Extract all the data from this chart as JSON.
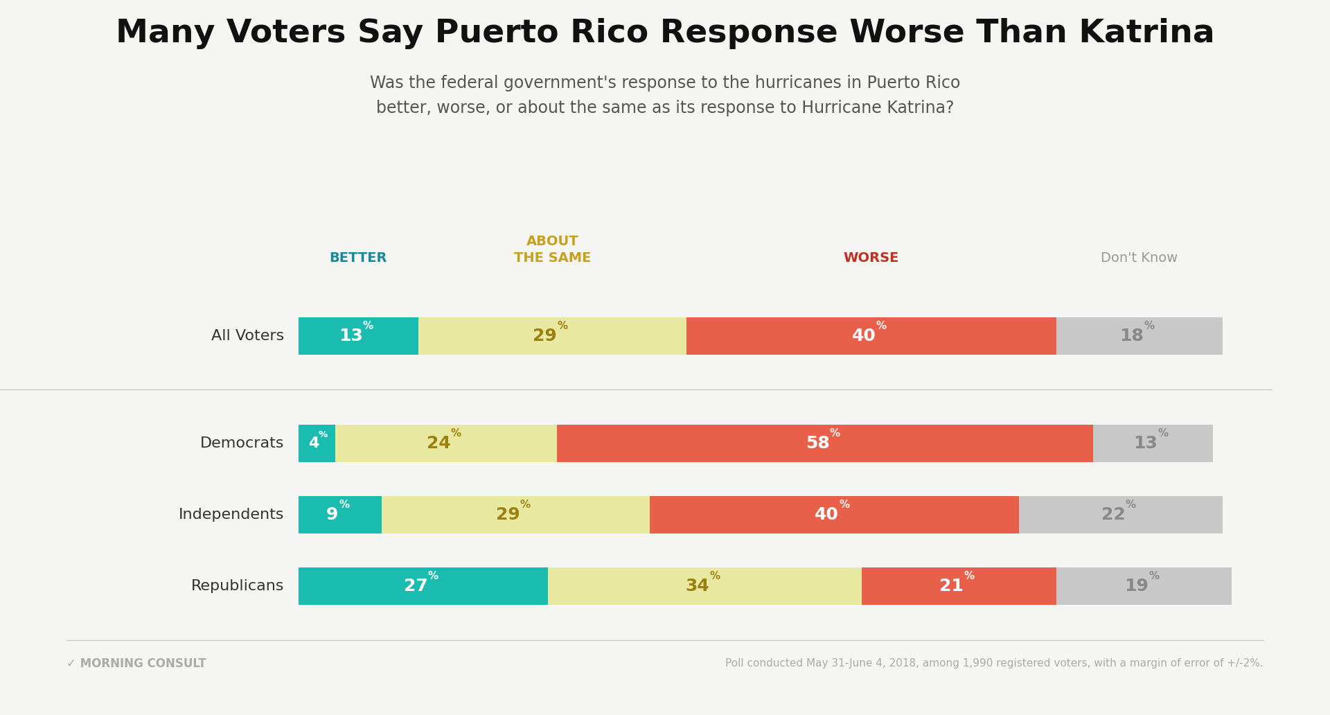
{
  "title": "Many Voters Say Puerto Rico Response Worse Than Katrina",
  "subtitle": "Was the federal government's response to the hurricanes in Puerto Rico\nbetter, worse, or about the same as its response to Hurricane Katrina?",
  "footer": "Poll conducted May 31-June 4, 2018, among 1,990 registered voters, with a margin of error of +/-2%.",
  "categories": [
    "All Voters",
    "Democrats",
    "Independents",
    "Republicans"
  ],
  "data": {
    "better": [
      13,
      4,
      9,
      27
    ],
    "about_same": [
      29,
      24,
      29,
      34
    ],
    "worse": [
      40,
      58,
      40,
      21
    ],
    "dont_know": [
      18,
      13,
      22,
      19
    ]
  },
  "colors": {
    "better": "#1abcb0",
    "about_same": "#e8e8a0",
    "worse": "#e8604a",
    "dont_know": "#c8c8c8"
  },
  "header_colors": {
    "better": "#1a8a9a",
    "about_same": "#c8a020",
    "worse": "#c03020",
    "dont_know": "#999999"
  },
  "background_color": "#f5f5f3",
  "bar_height": 0.52,
  "title_fontsize": 34,
  "subtitle_fontsize": 17,
  "label_fontsize": 16,
  "value_fontsize": 18,
  "header_fontsize": 14,
  "footer_fontsize": 12
}
